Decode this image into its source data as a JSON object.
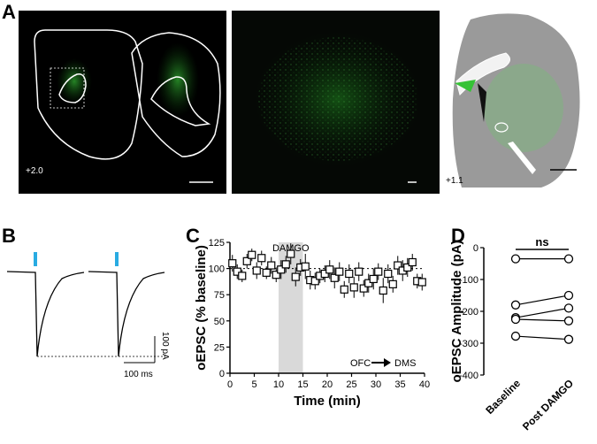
{
  "labels": {
    "A": "A",
    "B": "B",
    "C": "C",
    "D": "D"
  },
  "panelA": {
    "left_coord": "+2.0",
    "right_coord": "+1.1"
  },
  "panelB": {
    "scale_y": "100 pA",
    "scale_x": "100 ms"
  },
  "chart_data": [
    {
      "id": "C",
      "type": "scatter",
      "ylabel": "oEPSC (% baseline)",
      "xlabel": "Time (min)",
      "xlim": [
        0,
        40
      ],
      "ylim": [
        0,
        125
      ],
      "xticks": [
        0,
        5,
        10,
        15,
        20,
        25,
        30,
        35,
        40
      ],
      "yticks": [
        0,
        25,
        50,
        75,
        100,
        125
      ],
      "shaded": {
        "label": "DAMGO",
        "x": [
          10,
          15
        ]
      },
      "annotation": {
        "from": "OFC",
        "to": "DMS"
      },
      "baseline": 100,
      "x": [
        0,
        1,
        2,
        3,
        4,
        5,
        6,
        7,
        8,
        9,
        10,
        11,
        12,
        13,
        14,
        15,
        16,
        17,
        18,
        19,
        20,
        21,
        22,
        23,
        24,
        25,
        26,
        27,
        28,
        29,
        30,
        31,
        32,
        33,
        34,
        35,
        36,
        37,
        38,
        39
      ],
      "y": [
        105,
        97,
        93,
        107,
        113,
        98,
        110,
        96,
        103,
        94,
        99,
        104,
        114,
        92,
        101,
        102,
        89,
        88,
        93,
        95,
        99,
        91,
        97,
        80,
        95,
        82,
        97,
        81,
        86,
        90,
        97,
        79,
        95,
        85,
        103,
        98,
        101,
        106,
        88,
        87
      ],
      "err": [
        8,
        7,
        6,
        7,
        6,
        8,
        7,
        6,
        8,
        7,
        9,
        8,
        10,
        9,
        8,
        12,
        9,
        8,
        7,
        8,
        9,
        10,
        9,
        8,
        9,
        10,
        9,
        8,
        9,
        10,
        8,
        12,
        9,
        8,
        9,
        10,
        9,
        8,
        7,
        8
      ]
    },
    {
      "id": "D",
      "type": "line",
      "ylabel": "oEPSC Amplitude (pA)",
      "ylim": [
        -400,
        0
      ],
      "yticks": [
        0,
        -100,
        -200,
        -300,
        -400
      ],
      "categories": [
        "Baseline",
        "Post DAMGO"
      ],
      "significance": "ns",
      "pairs": [
        [
          -35,
          -35
        ],
        [
          -180,
          -150
        ],
        [
          -220,
          -190
        ],
        [
          -225,
          -230
        ],
        [
          -278,
          -288
        ]
      ]
    }
  ]
}
